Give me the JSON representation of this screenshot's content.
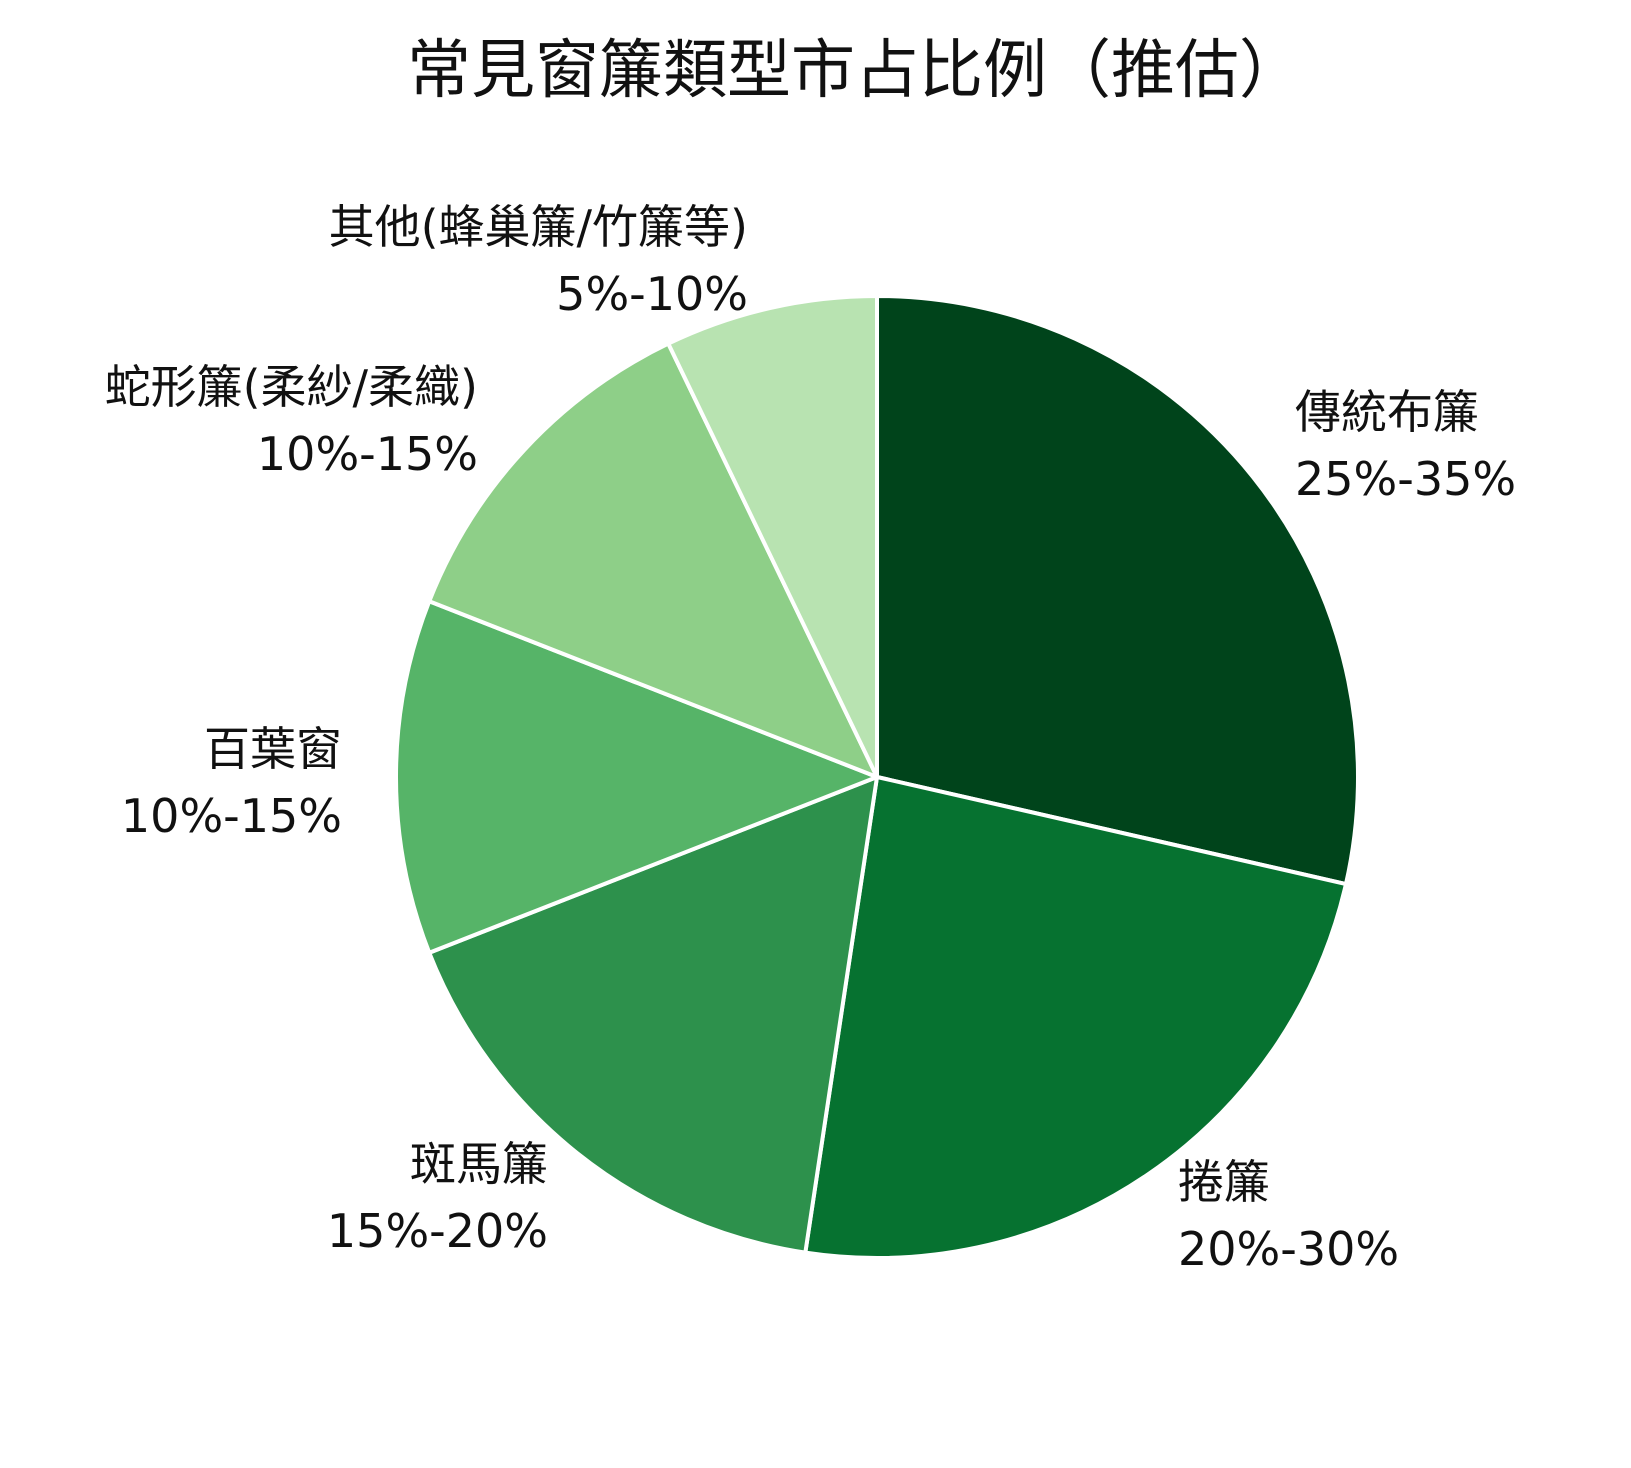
{
  "chart_data": {
    "type": "pie",
    "title": "常見窗簾類型市占比例（推估）",
    "start_angle": "top",
    "direction": "clockwise",
    "slices": [
      {
        "label": "傳統布簾",
        "range": "25%-35%",
        "value": 30,
        "color": "#00441b"
      },
      {
        "label": "捲簾",
        "range": "20%-30%",
        "value": 25,
        "color": "#067230"
      },
      {
        "label": "斑馬簾",
        "range": "15%-20%",
        "value": 17.5,
        "color": "#2d914c"
      },
      {
        "label": "百葉窗",
        "range": "10%-15%",
        "value": 12.5,
        "color": "#56b468"
      },
      {
        "label": "蛇形簾(柔紗/柔織)",
        "range": "10%-15%",
        "value": 12.5,
        "color": "#8ecf88"
      },
      {
        "label": "其他(蜂巢簾/竹簾等)",
        "range": "5%-10%",
        "value": 7.5,
        "color": "#b8e3b1"
      }
    ]
  }
}
